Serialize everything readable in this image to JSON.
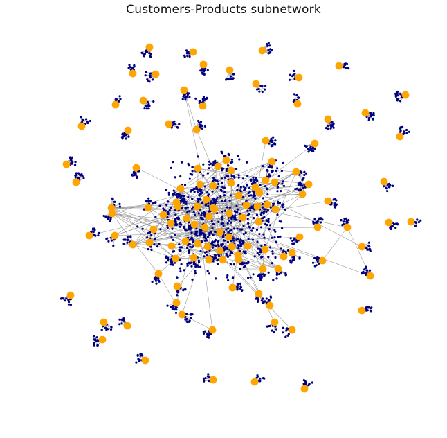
{
  "title": "Customers-Products subnetwork",
  "colors": {
    "customer_node": "#FFA500",
    "product_node": "#000080",
    "edge": "#808080",
    "background": "#FFFFFF"
  },
  "legend": null
}
